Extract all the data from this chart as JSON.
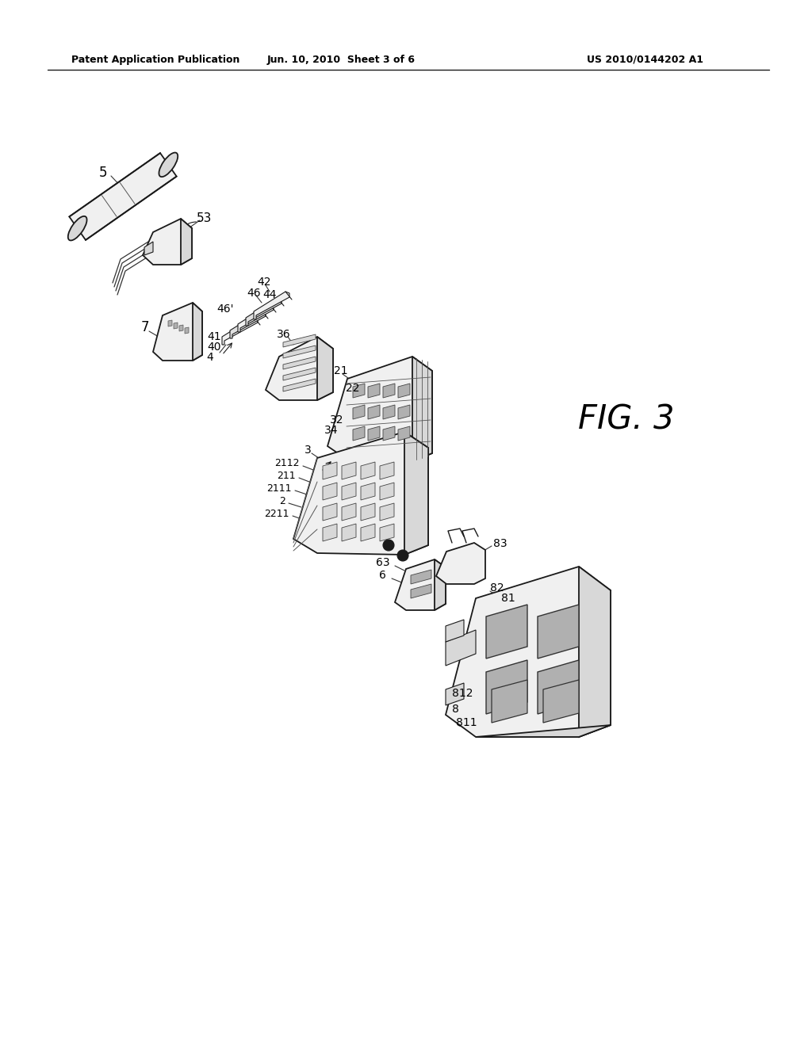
{
  "background_color": "#ffffff",
  "header_left": "Patent Application Publication",
  "header_center": "Jun. 10, 2010  Sheet 3 of 6",
  "header_right": "US 2010/0144202 A1",
  "fig_label": "FIG. 3",
  "line_color": "#1a1a1a",
  "fill_light": "#f0f0f0",
  "fill_mid": "#d8d8d8",
  "fill_dark": "#b0b0b0",
  "fill_black": "#1a1a1a"
}
